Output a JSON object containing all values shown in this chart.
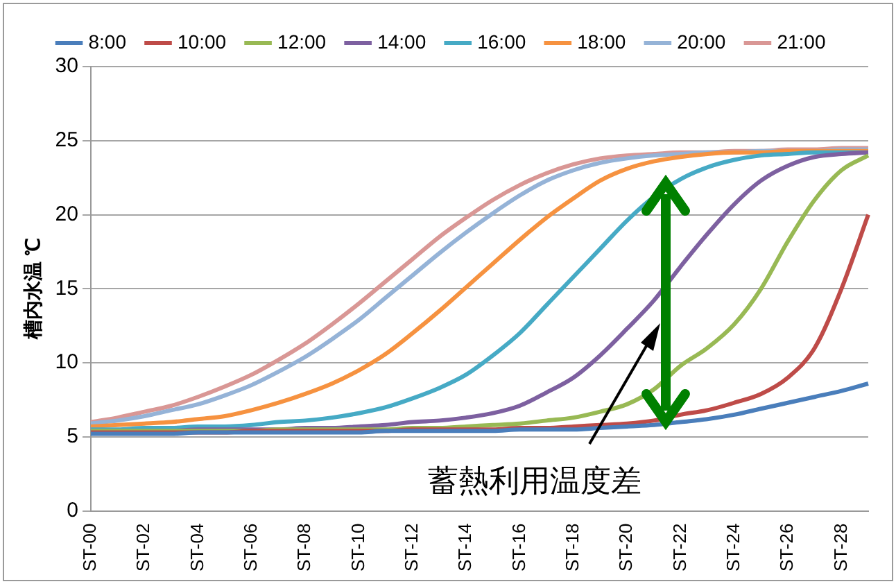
{
  "chart_data": {
    "type": "line",
    "ylabel": "槽内水温 ℃",
    "categories": [
      "ST-00",
      null,
      "ST-02",
      null,
      "ST-04",
      null,
      "ST-06",
      null,
      "ST-08",
      null,
      "ST-10",
      null,
      "ST-12",
      null,
      "ST-14",
      null,
      "ST-16",
      null,
      "ST-18",
      null,
      "ST-20",
      null,
      "ST-22",
      null,
      "ST-24",
      null,
      "ST-26",
      null,
      "ST-28",
      null
    ],
    "ylim": [
      0,
      30
    ],
    "yticks": [
      0,
      5,
      10,
      15,
      20,
      25,
      30
    ],
    "grid": "y",
    "legend": "top",
    "marker": "none",
    "line_style": "solid",
    "annotations": [
      "蓄熱利用温度差"
    ],
    "series": [
      {
        "name": "8:00",
        "color": "#4a7ebb",
        "values": [
          5.2,
          5.2,
          5.2,
          5.2,
          5.3,
          5.3,
          5.3,
          5.3,
          5.3,
          5.3,
          5.3,
          5.4,
          5.4,
          5.4,
          5.4,
          5.4,
          5.5,
          5.5,
          5.5,
          5.6,
          5.7,
          5.8,
          6.0,
          6.2,
          6.5,
          6.9,
          7.3,
          7.7,
          8.1,
          8.6
        ]
      },
      {
        "name": "10:00",
        "color": "#be4b48",
        "values": [
          5.3,
          5.3,
          5.3,
          5.3,
          5.3,
          5.3,
          5.4,
          5.4,
          5.4,
          5.4,
          5.4,
          5.4,
          5.5,
          5.5,
          5.5,
          5.5,
          5.6,
          5.6,
          5.7,
          5.8,
          5.9,
          6.1,
          6.5,
          6.8,
          7.3,
          7.9,
          9.0,
          11.0,
          15.0,
          20.0
        ]
      },
      {
        "name": "12:00",
        "color": "#98b954",
        "values": [
          5.4,
          5.4,
          5.4,
          5.4,
          5.4,
          5.4,
          5.4,
          5.5,
          5.5,
          5.5,
          5.5,
          5.5,
          5.6,
          5.6,
          5.7,
          5.8,
          5.9,
          6.1,
          6.3,
          6.7,
          7.2,
          8.2,
          9.8,
          11.0,
          12.6,
          15.0,
          18.2,
          21.0,
          23.0,
          24.0
        ]
      },
      {
        "name": "14:00",
        "color": "#7d60a0",
        "values": [
          5.4,
          5.4,
          5.4,
          5.4,
          5.5,
          5.5,
          5.5,
          5.5,
          5.6,
          5.6,
          5.7,
          5.8,
          6.0,
          6.1,
          6.3,
          6.6,
          7.1,
          8.0,
          9.0,
          10.5,
          12.3,
          14.2,
          16.5,
          18.7,
          20.7,
          22.3,
          23.3,
          23.9,
          24.1,
          24.2
        ]
      },
      {
        "name": "16:00",
        "color": "#46aac5",
        "values": [
          5.5,
          5.5,
          5.6,
          5.6,
          5.7,
          5.7,
          5.8,
          6.0,
          6.1,
          6.3,
          6.6,
          7.0,
          7.6,
          8.3,
          9.2,
          10.5,
          12.0,
          13.9,
          15.8,
          17.7,
          19.6,
          21.2,
          22.4,
          23.2,
          23.7,
          24.0,
          24.1,
          24.2,
          24.2,
          24.2
        ]
      },
      {
        "name": "18:00",
        "color": "#f69240",
        "values": [
          5.7,
          5.8,
          5.9,
          6.0,
          6.2,
          6.4,
          6.8,
          7.3,
          7.9,
          8.6,
          9.5,
          10.6,
          12.0,
          13.5,
          15.1,
          16.7,
          18.3,
          19.8,
          21.1,
          22.3,
          23.1,
          23.6,
          23.9,
          24.1,
          24.2,
          24.2,
          24.3,
          24.3,
          24.3,
          24.3
        ]
      },
      {
        "name": "20:00",
        "color": "#95b3d7",
        "values": [
          5.9,
          6.1,
          6.4,
          6.8,
          7.2,
          7.8,
          8.5,
          9.4,
          10.4,
          11.6,
          12.9,
          14.4,
          15.9,
          17.4,
          18.8,
          20.1,
          21.3,
          22.3,
          23.0,
          23.5,
          23.8,
          24.0,
          24.1,
          24.2,
          24.2,
          24.3,
          24.3,
          24.3,
          24.4,
          24.4
        ]
      },
      {
        "name": "21:00",
        "color": "#d99795",
        "values": [
          6.0,
          6.3,
          6.7,
          7.1,
          7.7,
          8.4,
          9.2,
          10.2,
          11.3,
          12.6,
          14.0,
          15.5,
          17.0,
          18.5,
          19.8,
          21.0,
          22.0,
          22.8,
          23.4,
          23.8,
          24.0,
          24.1,
          24.2,
          24.2,
          24.3,
          24.3,
          24.4,
          24.4,
          24.5,
          24.5
        ]
      }
    ]
  }
}
